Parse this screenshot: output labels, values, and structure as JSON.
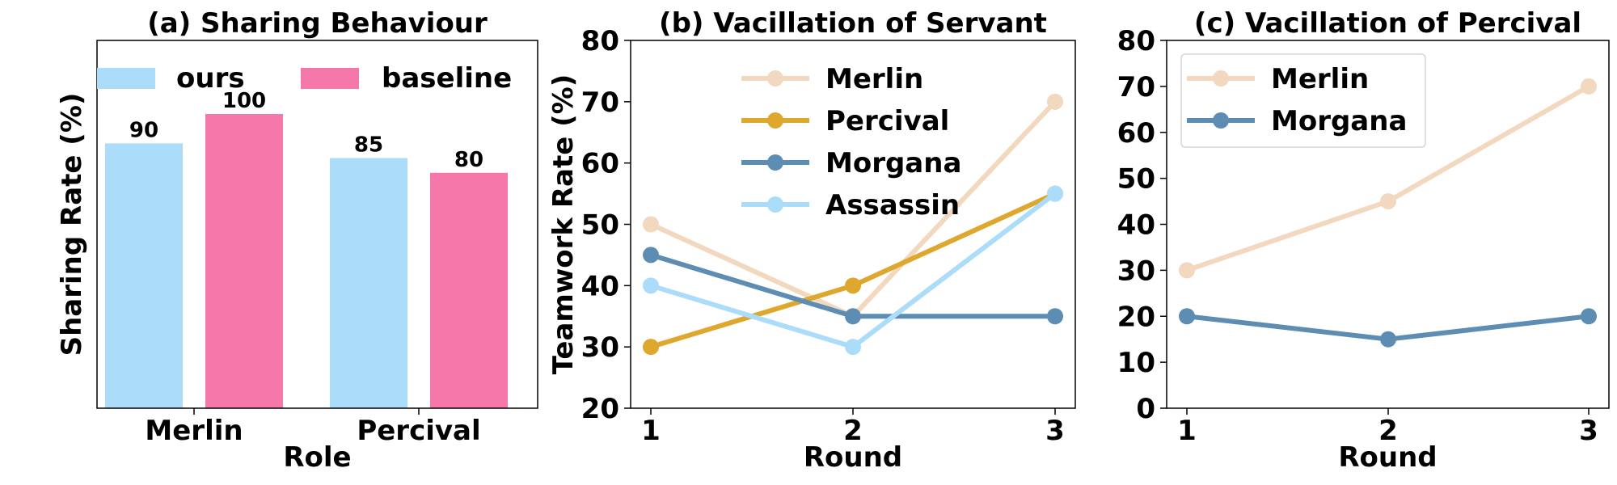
{
  "chart_data": [
    {
      "type": "bar",
      "title": "(a) Sharing Behaviour",
      "xlabel": "Role",
      "ylabel": "Sharing Rate (%)",
      "categories": [
        "Merlin",
        "Percival"
      ],
      "ylim": [
        0,
        125
      ],
      "yticks_shown": false,
      "legend_position": "top",
      "series": [
        {
          "name": "ours",
          "values": [
            90,
            85
          ],
          "color": "#abdcf9"
        },
        {
          "name": "baseline",
          "values": [
            100,
            80
          ],
          "color": "#f678aa"
        }
      ],
      "data_labels": [
        "90",
        "85",
        "100",
        "80"
      ]
    },
    {
      "type": "line",
      "title": "(b) Vacillation of Servant",
      "xlabel": "Round",
      "ylabel": "Teamwork Rate (%)",
      "x": [
        1,
        2,
        3
      ],
      "xticks": [
        "1",
        "2",
        "3"
      ],
      "ylim": [
        20,
        80
      ],
      "yticks": [
        "20",
        "30",
        "40",
        "50",
        "60",
        "70",
        "80"
      ],
      "legend_position": "upper-center",
      "series": [
        {
          "name": "Merlin",
          "values": [
            50,
            35,
            70
          ],
          "color": "#f2d8bf"
        },
        {
          "name": "Percival",
          "values": [
            30,
            40,
            55
          ],
          "color": "#dea72d"
        },
        {
          "name": "Morgana",
          "values": [
            45,
            35,
            35
          ],
          "color": "#5d8db2"
        },
        {
          "name": "Assassin",
          "values": [
            40,
            30,
            55
          ],
          "color": "#abdcf9"
        }
      ]
    },
    {
      "type": "line",
      "title": "(c) Vacillation of Percival",
      "xlabel": "Round",
      "ylabel": "",
      "x": [
        1,
        2,
        3
      ],
      "xticks": [
        "1",
        "2",
        "3"
      ],
      "ylim": [
        0,
        80
      ],
      "yticks": [
        "0",
        "10",
        "20",
        "30",
        "40",
        "50",
        "60",
        "70",
        "80"
      ],
      "legend_position": "upper-left",
      "series": [
        {
          "name": "Merlin",
          "values": [
            30,
            45,
            70
          ],
          "color": "#f2d8bf"
        },
        {
          "name": "Morgana",
          "values": [
            20,
            15,
            20
          ],
          "color": "#5d8db2"
        }
      ]
    }
  ]
}
